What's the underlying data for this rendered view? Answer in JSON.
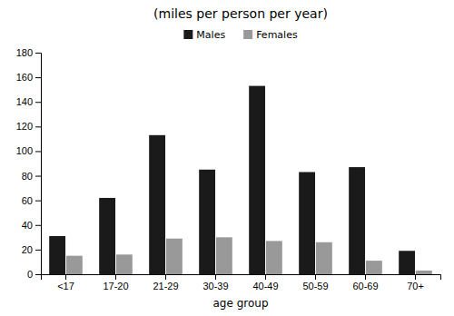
{
  "chart_data": {
    "type": "bar",
    "title": "(miles per person per year)",
    "xlabel": "age group",
    "categories": [
      "<17",
      "17-20",
      "21-29",
      "30-39",
      "40-49",
      "50-59",
      "60-69",
      "70+"
    ],
    "series": [
      {
        "name": "Males",
        "color": "#1a1a1a",
        "values": [
          31,
          62,
          113,
          85,
          153,
          83,
          87,
          19
        ]
      },
      {
        "name": "Females",
        "color": "#999999",
        "values": [
          15,
          16,
          29,
          30,
          27,
          26,
          11,
          3
        ]
      }
    ],
    "ylim": [
      0,
      180
    ],
    "yticks": [
      0,
      20,
      40,
      60,
      80,
      100,
      120,
      140,
      160,
      180
    ],
    "grid": false,
    "legend": "top"
  }
}
